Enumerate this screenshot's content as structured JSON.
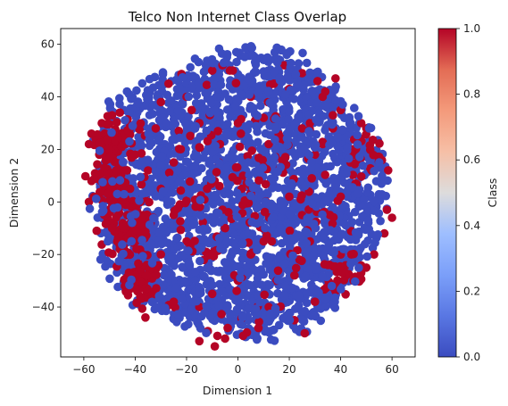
{
  "chart_data": {
    "type": "scatter",
    "title": "Telco Non Internet Class Overlap",
    "xlabel": "Dimension 1",
    "ylabel": "Dimension 2",
    "xlim": [
      -69,
      69
    ],
    "ylim": [
      -59,
      66
    ],
    "xticks": [
      -60,
      -40,
      -20,
      0,
      20,
      40,
      60
    ],
    "yticks": [
      -40,
      -20,
      0,
      20,
      40,
      60
    ],
    "grid": false,
    "colorbar": {
      "label": "Class",
      "range": [
        0.0,
        1.0
      ],
      "ticks": [
        0.0,
        0.2,
        0.4,
        0.6,
        0.8,
        1.0
      ],
      "tick_labels": [
        "0.0",
        "0.2",
        "0.4",
        "0.6",
        "0.8",
        "1.0"
      ],
      "colormap": "coolwarm",
      "low_color": "#3b4cc0",
      "high_color": "#b40426"
    },
    "series": [
      {
        "class": 0,
        "color": "#3b4cc0",
        "distribution": "dense roughly circular cloud",
        "center": [
          0,
          3
        ],
        "radius": [
          58,
          55
        ],
        "approx_count": 2300
      },
      {
        "class": 1,
        "color": "#b40426",
        "distribution": "scattered points, concentrated on the left edge",
        "clusters": [
          {
            "center": [
              -50,
              22
            ],
            "spread": [
              8,
              10
            ],
            "count": 90
          },
          {
            "center": [
              -47,
              5
            ],
            "spread": [
              8,
              10
            ],
            "count": 70
          },
          {
            "center": [
              -42,
              -12
            ],
            "spread": [
              8,
              10
            ],
            "count": 70
          },
          {
            "center": [
              -38,
              -30
            ],
            "spread": [
              6,
              8
            ],
            "count": 50
          },
          {
            "center": [
              50,
              18
            ],
            "spread": [
              8,
              10
            ],
            "count": 25
          },
          {
            "center": [
              42,
              -28
            ],
            "spread": [
              10,
              10
            ],
            "count": 30
          },
          {
            "center": [
              0,
              0
            ],
            "spread": [
              45,
              45
            ],
            "count": 160
          }
        ],
        "points": [
          [
            -9,
            -55
          ],
          [
            -8,
            -51
          ],
          [
            -15,
            -53
          ],
          [
            -5,
            -52
          ],
          [
            2,
            -51
          ],
          [
            -4,
            -48
          ],
          [
            8,
            -48
          ],
          [
            26,
            -50
          ],
          [
            22,
            -45
          ],
          [
            45,
            -30
          ],
          [
            38,
            -34
          ],
          [
            50,
            -25
          ],
          [
            53,
            -20
          ],
          [
            57,
            -12
          ],
          [
            60,
            -6
          ],
          [
            58,
            -3
          ],
          [
            35,
            -24
          ],
          [
            40,
            -20
          ],
          [
            48,
            -27
          ],
          [
            40,
            2
          ],
          [
            48,
            30
          ],
          [
            45,
            18
          ],
          [
            52,
            12
          ],
          [
            50,
            28
          ],
          [
            37,
            28
          ],
          [
            33,
            22
          ],
          [
            30,
            18
          ],
          [
            40,
            35
          ],
          [
            38,
            47
          ],
          [
            37,
            33
          ],
          [
            33,
            40
          ],
          [
            -6,
            52
          ],
          [
            -2,
            50
          ],
          [
            -10,
            50
          ],
          [
            5,
            40
          ],
          [
            18,
            52
          ],
          [
            14,
            45
          ],
          [
            20,
            43
          ],
          [
            25,
            49
          ],
          [
            31,
            46
          ],
          [
            34,
            42
          ],
          [
            -20,
            40
          ],
          [
            -30,
            38
          ],
          [
            -27,
            45
          ],
          [
            -18,
            35
          ],
          [
            -15,
            30
          ],
          [
            -7,
            22
          ],
          [
            0,
            30
          ],
          [
            10,
            32
          ],
          [
            12,
            22
          ],
          [
            17,
            24
          ],
          [
            25,
            28
          ],
          [
            -12,
            5
          ],
          [
            -30,
            5
          ],
          [
            -35,
            12
          ],
          [
            2,
            10
          ],
          [
            20,
            2
          ],
          [
            25,
            -5
          ],
          [
            28,
            -15
          ],
          [
            24,
            -22
          ],
          [
            10,
            -15
          ],
          [
            5,
            -20
          ],
          [
            -5,
            -10
          ],
          [
            -10,
            -20
          ],
          [
            -20,
            -15
          ],
          [
            -25,
            -5
          ],
          [
            -30,
            -20
          ],
          [
            0,
            -30
          ],
          [
            15,
            -30
          ],
          [
            -15,
            -40
          ],
          [
            -25,
            -38
          ],
          [
            -10,
            -35
          ],
          [
            12,
            -40
          ],
          [
            30,
            -38
          ],
          [
            22,
            -28
          ],
          [
            28,
            30
          ],
          [
            -38,
            -36
          ],
          [
            -36,
            -44
          ],
          [
            -40,
            -28
          ],
          [
            -46,
            -18
          ],
          [
            -49,
            -10
          ],
          [
            -52,
            -5
          ],
          [
            -55,
            -11
          ],
          [
            -58,
            0
          ],
          [
            -57,
            8
          ],
          [
            -52,
            13
          ],
          [
            -54,
            18
          ],
          [
            -58,
            22
          ],
          [
            -57,
            26
          ],
          [
            -53,
            30
          ],
          [
            -49,
            33
          ],
          [
            -46,
            34
          ],
          [
            -42,
            28
          ],
          [
            -44,
            22
          ],
          [
            -40,
            18
          ],
          [
            -45,
            8
          ],
          [
            -42,
            5
          ],
          [
            -38,
            0
          ],
          [
            -43,
            -5
          ],
          [
            -47,
            -15
          ],
          [
            -41,
            -30
          ],
          [
            -44,
            -32
          ],
          [
            -37,
            -20
          ],
          [
            -34,
            -8
          ],
          [
            -32,
            28
          ],
          [
            -25,
            15
          ],
          [
            -23,
            27
          ]
        ]
      }
    ]
  }
}
